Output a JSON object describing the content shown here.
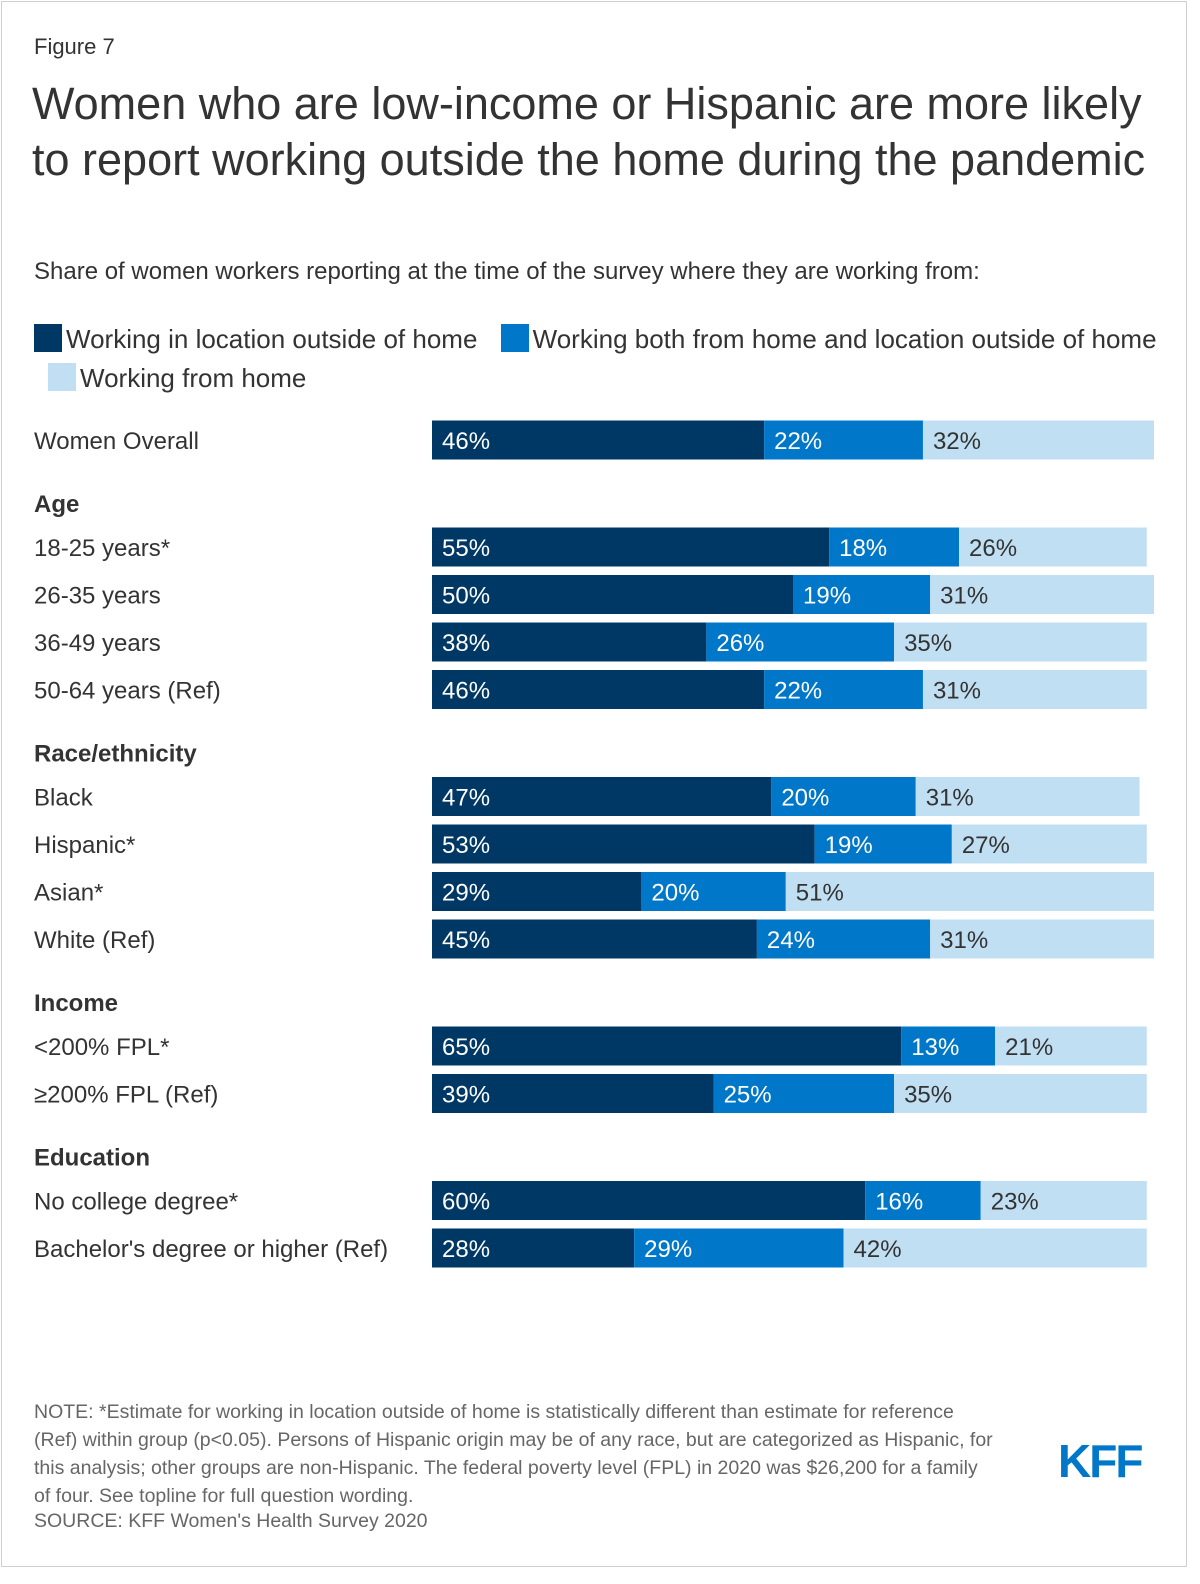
{
  "figure_label": "Figure 7",
  "title": "Women who are low-income or Hispanic are more likely to report working outside the home during the pandemic",
  "subtitle": "Share of women workers reporting at the time of the survey where they are working from:",
  "colors": {
    "outside": "#003865",
    "both": "#0077c8",
    "home": "#c1dff3"
  },
  "chart_data": {
    "type": "bar",
    "orientation": "horizontal",
    "stacked": true,
    "xlim": [
      0,
      100
    ],
    "series": [
      {
        "name": "Working in location outside of home",
        "color": "#003865"
      },
      {
        "name": "Working both from home and location outside of home",
        "color": "#0077c8"
      },
      {
        "name": "Working from home",
        "color": "#c1dff3"
      }
    ],
    "groups": [
      {
        "heading": "",
        "rows": [
          {
            "label": "Women Overall",
            "values": [
              46,
              22,
              32
            ],
            "labels": [
              "46%",
              "22%",
              "32%"
            ]
          }
        ]
      },
      {
        "heading": "Age",
        "rows": [
          {
            "label": "18-25 years*",
            "values": [
              55,
              18,
              26
            ],
            "labels": [
              "55%",
              "18%",
              "26%"
            ]
          },
          {
            "label": "26-35 years",
            "values": [
              50,
              19,
              31
            ],
            "labels": [
              "50%",
              "19%",
              "31%"
            ]
          },
          {
            "label": "36-49 years",
            "values": [
              38,
              26,
              35
            ],
            "labels": [
              "38%",
              "26%",
              "35%"
            ]
          },
          {
            "label": "50-64 years (Ref)",
            "values": [
              46,
              22,
              31
            ],
            "labels": [
              "46%",
              "22%",
              "31%"
            ]
          }
        ]
      },
      {
        "heading": "Race/ethnicity",
        "rows": [
          {
            "label": "Black",
            "values": [
              47,
              20,
              31
            ],
            "labels": [
              "47%",
              "20%",
              "31%"
            ]
          },
          {
            "label": "Hispanic*",
            "values": [
              53,
              19,
              27
            ],
            "labels": [
              "53%",
              "19%",
              "27%"
            ]
          },
          {
            "label": "Asian*",
            "values": [
              29,
              20,
              51
            ],
            "labels": [
              "29%",
              "20%",
              "51%"
            ]
          },
          {
            "label": "White (Ref)",
            "values": [
              45,
              24,
              31
            ],
            "labels": [
              "45%",
              "24%",
              "31%"
            ]
          }
        ]
      },
      {
        "heading": "Income",
        "rows": [
          {
            "label": "<200% FPL*",
            "values": [
              65,
              13,
              21
            ],
            "labels": [
              "65%",
              "13%",
              "21%"
            ]
          },
          {
            "label": "≥200% FPL (Ref)",
            "values": [
              39,
              25,
              35
            ],
            "labels": [
              "39%",
              "25%",
              "35%"
            ]
          }
        ]
      },
      {
        "heading": "Education",
        "rows": [
          {
            "label": "No college degree*",
            "values": [
              60,
              16,
              23
            ],
            "labels": [
              "60%",
              "16%",
              "23%"
            ]
          },
          {
            "label": "Bachelor's degree or higher (Ref)",
            "values": [
              28,
              29,
              42
            ],
            "labels": [
              "28%",
              "29%",
              "42%"
            ]
          }
        ]
      }
    ]
  },
  "footnote": "NOTE: *Estimate for working in location outside of home is statistically different than estimate for reference (Ref) within group (p<0.05). Persons of Hispanic origin may be of any race, but are categorized as Hispanic, for this analysis; other groups are non-Hispanic. The federal poverty level (FPL) in 2020 was $26,200 for a family of four. See topline for full question wording.",
  "source": "SOURCE: KFF Women's Health Survey 2020",
  "logo": "KFF"
}
